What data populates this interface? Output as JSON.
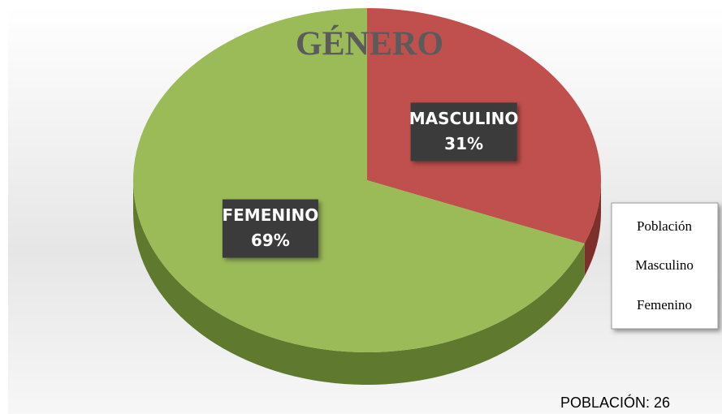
{
  "chart_data": {
    "type": "pie",
    "title": "GÉNERO",
    "categories": [
      "MASCULINO",
      "FEMENINO"
    ],
    "values": [
      31,
      69
    ],
    "value_labels": [
      "31%",
      "69%"
    ],
    "colors": [
      "#c0504d",
      "#9bbb59"
    ],
    "side_colors": [
      "#7d2f2c",
      "#5f7a2e"
    ],
    "legend": {
      "title": "Población",
      "entries": [
        "Masculino",
        "Femenino"
      ],
      "position": "right"
    },
    "annotation": "POBLACIÓN: 26"
  }
}
